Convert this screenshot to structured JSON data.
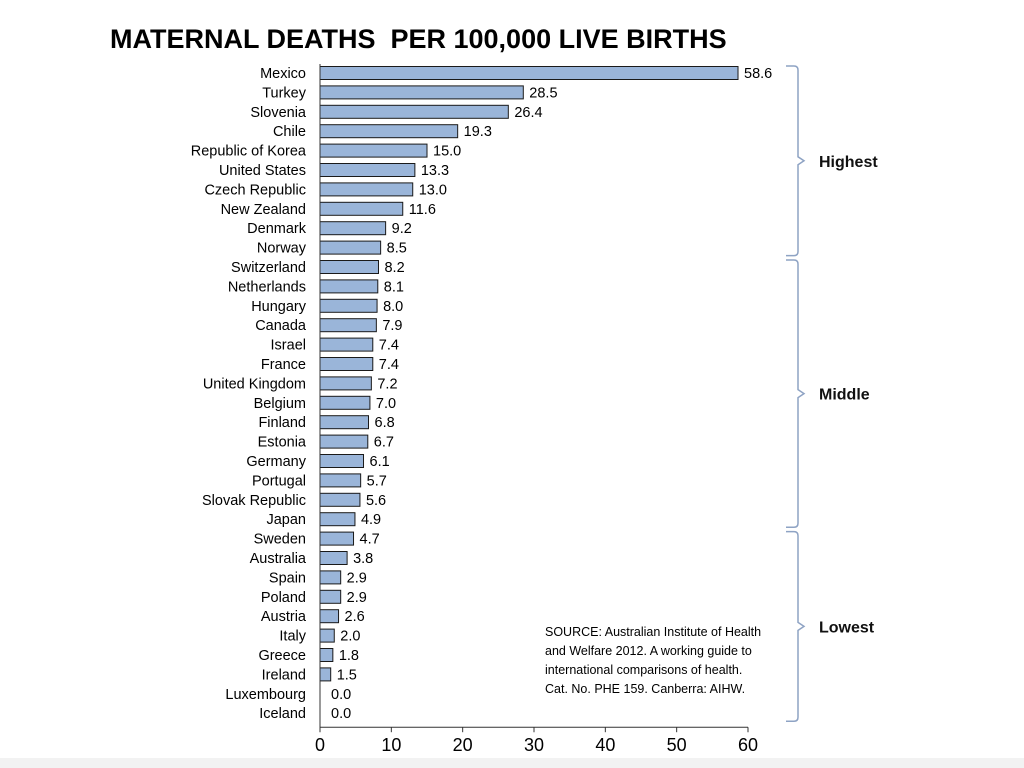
{
  "title": "MATERNAL DEATHS  PER 100,000 LIVE BIRTHS",
  "source": "SOURCE: Australian Institute of Health and Welfare 2012. A working guide to international comparisons of health. Cat. No. PHE 159. Canberra: AIHW.",
  "colors": {
    "bar_fill": "#9ab5d9",
    "bar_stroke": "#1a1a1a",
    "bracket": "#8ea3c4"
  },
  "chart_data": {
    "type": "bar",
    "orientation": "horizontal",
    "title": "MATERNAL DEATHS  PER 100,000 LIVE BIRTHS",
    "categories": [
      "Mexico",
      "Turkey",
      "Slovenia",
      "Chile",
      "Republic of Korea",
      "United States",
      "Czech Republic",
      "New Zealand",
      "Denmark",
      "Norway",
      "Switzerland",
      "Netherlands",
      "Hungary",
      "Canada",
      "Israel",
      "France",
      "United Kingdom",
      "Belgium",
      "Finland",
      "Estonia",
      "Germany",
      "Portugal",
      "Slovak Republic",
      "Japan",
      "Sweden",
      "Australia",
      "Spain",
      "Poland",
      "Austria",
      "Italy",
      "Greece",
      "Ireland",
      "Luxembourg",
      "Iceland"
    ],
    "values": [
      58.6,
      28.5,
      26.4,
      19.3,
      15.0,
      13.3,
      13.0,
      11.6,
      9.2,
      8.5,
      8.2,
      8.1,
      8.0,
      7.9,
      7.4,
      7.4,
      7.2,
      7.0,
      6.8,
      6.7,
      6.1,
      5.7,
      5.6,
      4.9,
      4.7,
      3.8,
      2.9,
      2.9,
      2.6,
      2.0,
      1.8,
      1.5,
      0.0,
      0.0
    ],
    "value_labels": [
      "58.6",
      "28.5",
      "26.4",
      "19.3",
      "15.0",
      "13.3",
      "13.0",
      "11.6",
      "9.2",
      "8.5",
      "8.2",
      "8.1",
      "8.0",
      "7.9",
      "7.4",
      "7.4",
      "7.2",
      "7.0",
      "6.8",
      "6.7",
      "6.1",
      "5.7",
      "5.6",
      "4.9",
      "4.7",
      "3.8",
      "2.9",
      "2.9",
      "2.6",
      "2.0",
      "1.8",
      "1.5",
      "0.0",
      "0.0"
    ],
    "xlim": [
      0,
      60
    ],
    "xticks": [
      0,
      10,
      20,
      30,
      40,
      50,
      60
    ],
    "xtick_labels": [
      "0",
      "10",
      "20",
      "30",
      "40",
      "50",
      "60"
    ],
    "xlabel": "",
    "ylabel": "",
    "grid": false,
    "groups": [
      {
        "label": "Highest",
        "from": 0,
        "to": 9
      },
      {
        "label": "Middle",
        "from": 10,
        "to": 23
      },
      {
        "label": "Lowest",
        "from": 24,
        "to": 33
      }
    ]
  }
}
